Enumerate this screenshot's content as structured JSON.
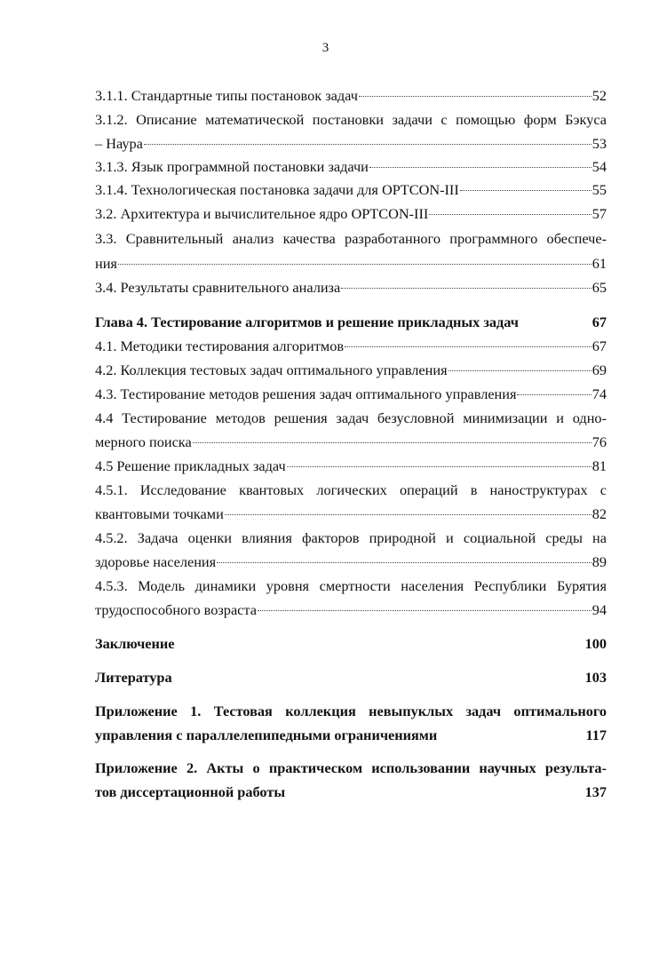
{
  "page_number": "3",
  "entries": [
    {
      "text": "3.1.1. Стандартные типы постановок задач",
      "page": "52"
    },
    {
      "text": "3.1.2. Описание математической постановки задачи с помощью форм Бэкуса",
      "cont": "– Наура",
      "page": "53"
    },
    {
      "text": "3.1.3. Язык программной постановки задачи",
      "page": "54"
    },
    {
      "text": "3.1.4. Технологическая постановка задачи для OPTCON-III",
      "page": "55"
    },
    {
      "text": "3.2. Архитектура и вычислительное ядро OPTCON-III",
      "page": "57"
    },
    {
      "text": "3.3. Сравнительный анализ качества разработанного программного обеспече-",
      "cont": "ния",
      "page": "61"
    },
    {
      "text": "3.4. Результаты сравнительного анализа",
      "page": "65"
    },
    {
      "text": "Глава 4. Тестирование алгоритмов и решение прикладных задач",
      "page": "67",
      "bold": true
    },
    {
      "text": "4.1. Методики тестирования алгоритмов",
      "page": "67"
    },
    {
      "text": "4.2. Коллекция тестовых задач оптимального управления",
      "page": "69"
    },
    {
      "text": "4.3. Тестирование методов решения задач оптимального управления",
      "page": "74"
    },
    {
      "text": "4.4 Тестирование методов решения задач безусловной минимизации и одно-",
      "cont": "мерного поиска",
      "page": "76"
    },
    {
      "text": "4.5 Решение прикладных задач",
      "page": "81"
    },
    {
      "text": "4.5.1. Исследование квантовых логических операций в наноструктурах с",
      "cont": "квантовыми точками",
      "page": "82"
    },
    {
      "text": "4.5.2. Задача оценки влияния факторов природной и социальной среды на",
      "cont": "здоровье населения",
      "page": "89"
    },
    {
      "text": "4.5.3. Модель динамики уровня смертности населения Республики Бурятия",
      "cont": "трудоспособного возраста",
      "page": "94"
    },
    {
      "text": "Заключение",
      "page": "100",
      "bold": true
    },
    {
      "text": "Литература",
      "page": "103",
      "bold": true
    },
    {
      "text": "Приложение 1. Тестовая коллекция невыпуклых задач оптимального",
      "cont": "управления с параллелепипедными ограничениями",
      "page": "117",
      "bold": true
    },
    {
      "text": "Приложение 2. Акты о практическом использовании научных результа-",
      "cont": "тов диссертационной работы",
      "page": "137",
      "bold": true
    }
  ]
}
